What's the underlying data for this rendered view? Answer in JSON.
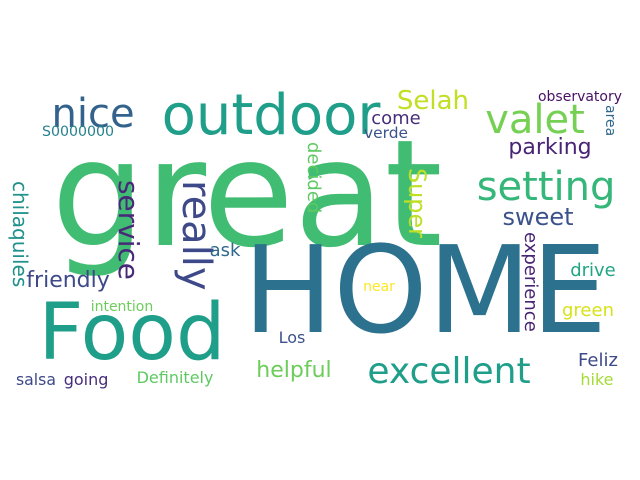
{
  "words": [
    {
      "id": "great",
      "text": "great",
      "color": "#40bd72"
    },
    {
      "id": "home",
      "text": "HOME",
      "color": "#2c718e"
    },
    {
      "id": "food",
      "text": "Food",
      "color": "#1f9e89"
    },
    {
      "id": "outdoor",
      "text": "outdoor",
      "color": "#1f9e89"
    },
    {
      "id": "nice",
      "text": "nice",
      "color": "#33638d"
    },
    {
      "id": "valet",
      "text": "valet",
      "color": "#75d054"
    },
    {
      "id": "setting",
      "text": "setting",
      "color": "#35b779"
    },
    {
      "id": "excellent",
      "text": "excellent",
      "color": "#1f9e89"
    },
    {
      "id": "really",
      "text": "really",
      "color": "#3e4989"
    },
    {
      "id": "service",
      "text": "service",
      "color": "#482878"
    },
    {
      "id": "sweet",
      "text": "sweet",
      "color": "#3b528b"
    },
    {
      "id": "parking",
      "text": "parking",
      "color": "#482475"
    },
    {
      "id": "selah",
      "text": "Selah",
      "color": "#c2df23"
    },
    {
      "id": "super",
      "text": "Super",
      "color": "#bddf26"
    },
    {
      "id": "helpful",
      "text": "helpful",
      "color": "#6ccd5a"
    },
    {
      "id": "friendly",
      "text": "friendly",
      "color": "#3e4989"
    },
    {
      "id": "chilaquiles",
      "text": "chilaquiles",
      "color": "#21918c"
    },
    {
      "id": "s0000000",
      "text": "S0000000",
      "color": "#26828e"
    },
    {
      "id": "come",
      "text": "come",
      "color": "#472d7b"
    },
    {
      "id": "verde",
      "text": "verde",
      "color": "#3b528b"
    },
    {
      "id": "decided",
      "text": "decided",
      "color": "#5ec962"
    },
    {
      "id": "observatory",
      "text": "observatory",
      "color": "#471164"
    },
    {
      "id": "area",
      "text": "area",
      "color": "#31688e"
    },
    {
      "id": "ask",
      "text": "ask",
      "color": "#31688e"
    },
    {
      "id": "intention",
      "text": "intention",
      "color": "#6ccd5a"
    },
    {
      "id": "salsa",
      "text": "salsa",
      "color": "#3e4989"
    },
    {
      "id": "going",
      "text": "going",
      "color": "#472d7b"
    },
    {
      "id": "definitely",
      "text": "Definitely",
      "color": "#5ec962"
    },
    {
      "id": "los",
      "text": "Los",
      "color": "#3b528b"
    },
    {
      "id": "near",
      "text": "near",
      "color": "#fde725"
    },
    {
      "id": "experience",
      "text": "experience",
      "color": "#482475"
    },
    {
      "id": "drive",
      "text": "drive",
      "color": "#21a685"
    },
    {
      "id": "green",
      "text": "green",
      "color": "#d8e219"
    },
    {
      "id": "feliz",
      "text": "Feliz",
      "color": "#3e4989"
    },
    {
      "id": "hike",
      "text": "hike",
      "color": "#a5db36"
    }
  ]
}
